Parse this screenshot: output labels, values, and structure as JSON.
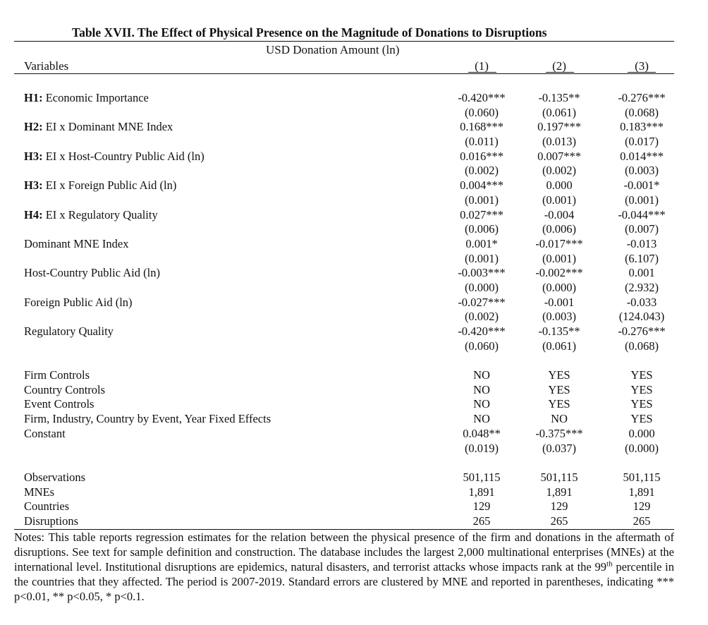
{
  "table": {
    "title": "Table XVII. The Effect of Physical Presence on the Magnitude of Donations to Disruptions",
    "subtitle": "USD Donation Amount (ln)",
    "variables_header": "Variables",
    "columns": [
      "(1)",
      "(2)",
      "(3)"
    ],
    "coef_rows": [
      {
        "prefix": "H1:",
        "label": " Economic Importance",
        "coef": [
          "-0.420***",
          "-0.135**",
          "-0.276***"
        ],
        "se": [
          "(0.060)",
          "(0.061)",
          "(0.068)"
        ]
      },
      {
        "prefix": "H2:",
        "label": " EI x Dominant MNE Index",
        "coef": [
          "0.168***",
          "0.197***",
          "0.183***"
        ],
        "se": [
          "(0.011)",
          "(0.013)",
          "(0.017)"
        ]
      },
      {
        "prefix": "H3:",
        "label": " EI x Host-Country Public Aid (ln)",
        "coef": [
          "0.016***",
          "0.007***",
          "0.014***"
        ],
        "se": [
          "(0.002)",
          "(0.002)",
          "(0.003)"
        ]
      },
      {
        "prefix": "H3:",
        "label": " EI x Foreign Public Aid (ln)",
        "coef": [
          "0.004***",
          "0.000",
          "-0.001*"
        ],
        "se": [
          "(0.001)",
          "(0.001)",
          "(0.001)"
        ]
      },
      {
        "prefix": "H4:",
        "label": " EI x Regulatory Quality",
        "coef": [
          "0.027***",
          "-0.004",
          "-0.044***"
        ],
        "se": [
          "(0.006)",
          "(0.006)",
          "(0.007)"
        ]
      },
      {
        "prefix": "",
        "label": "Dominant MNE Index",
        "coef": [
          "0.001*",
          "-0.017***",
          "-0.013"
        ],
        "se": [
          "(0.001)",
          "(0.001)",
          "(6.107)"
        ]
      },
      {
        "prefix": "",
        "label": "Host-Country Public Aid (ln)",
        "coef": [
          "-0.003***",
          "-0.002***",
          "0.001"
        ],
        "se": [
          "(0.000)",
          "(0.000)",
          "(2.932)"
        ]
      },
      {
        "prefix": "",
        "label": "Foreign Public Aid (ln)",
        "coef": [
          "-0.027***",
          "-0.001",
          "-0.033"
        ],
        "se": [
          "(0.002)",
          "(0.003)",
          "(124.043)"
        ]
      },
      {
        "prefix": "",
        "label": "Regulatory Quality",
        "coef": [
          "-0.420***",
          "-0.135**",
          "-0.276***"
        ],
        "se": [
          "(0.060)",
          "(0.061)",
          "(0.068)"
        ]
      }
    ],
    "controls": [
      {
        "label": "Firm Controls",
        "values": [
          "NO",
          "YES",
          "YES"
        ]
      },
      {
        "label": "Country Controls",
        "values": [
          "NO",
          "YES",
          "YES"
        ]
      },
      {
        "label": "Event Controls",
        "values": [
          "NO",
          "YES",
          "YES"
        ]
      },
      {
        "label": "Firm, Industry, Country by Event, Year Fixed Effects",
        "values": [
          "NO",
          "NO",
          "YES"
        ]
      }
    ],
    "constant": {
      "label": "Constant",
      "coef": [
        "0.048**",
        "-0.375***",
        "0.000"
      ],
      "se": [
        "(0.019)",
        "(0.037)",
        "(0.000)"
      ]
    },
    "stats": [
      {
        "label": "Observations",
        "values": [
          "501,115",
          "501,115",
          "501,115"
        ]
      },
      {
        "label": "MNEs",
        "values": [
          "1,891",
          "1,891",
          "1,891"
        ]
      },
      {
        "label": "Countries",
        "values": [
          "129",
          "129",
          "129"
        ]
      },
      {
        "label": "Disruptions",
        "values": [
          "265",
          "265",
          "265"
        ]
      }
    ],
    "notes": {
      "part1": "Notes: This table reports regression estimates for the relation between the physical presence of the firm and donations in the aftermath of disruptions. See text for sample definition and construction. The database includes the largest 2,000 multinational enterprises (MNEs) at the international level. Institutional disruptions are epidemics, natural disasters, and terrorist attacks whose impacts rank at the 99",
      "sup": "th",
      "part2": " percentile in the countries that they affected. The period is 2007-2019. Standard errors are clustered by MNE and reported in parentheses, indicating *** p<0.01, ** p<0.05, * p<0.1."
    }
  }
}
